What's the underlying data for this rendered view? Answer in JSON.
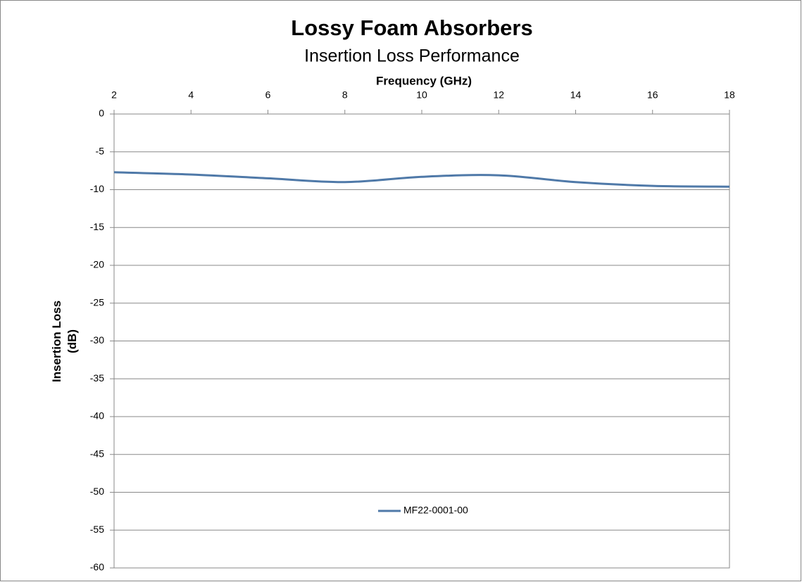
{
  "chart_data": {
    "type": "line",
    "title": "Lossy Foam Absorbers",
    "subtitle": "Insertion Loss Performance",
    "x_label": "Frequency (GHz)",
    "y_label": "Insertion Loss (dB)",
    "x": [
      2,
      4,
      6,
      8,
      10,
      12,
      14,
      16,
      18
    ],
    "series": [
      {
        "name": "MF22-0001-00",
        "color": "#4f79a8",
        "values": [
          -7.7,
          -8.0,
          -8.5,
          -9.0,
          -8.3,
          -8.1,
          -9.0,
          -9.5,
          -9.6
        ]
      }
    ],
    "xlim": [
      2,
      18
    ],
    "xticks": [
      2,
      4,
      6,
      8,
      10,
      12,
      14,
      16,
      18
    ],
    "ylim": [
      -60,
      0
    ],
    "yticks": [
      0,
      -5,
      -10,
      -15,
      -20,
      -25,
      -30,
      -35,
      -40,
      -45,
      -50,
      -55,
      -60
    ],
    "x_axis_position": "top",
    "grid": true,
    "legend": "lower center"
  }
}
